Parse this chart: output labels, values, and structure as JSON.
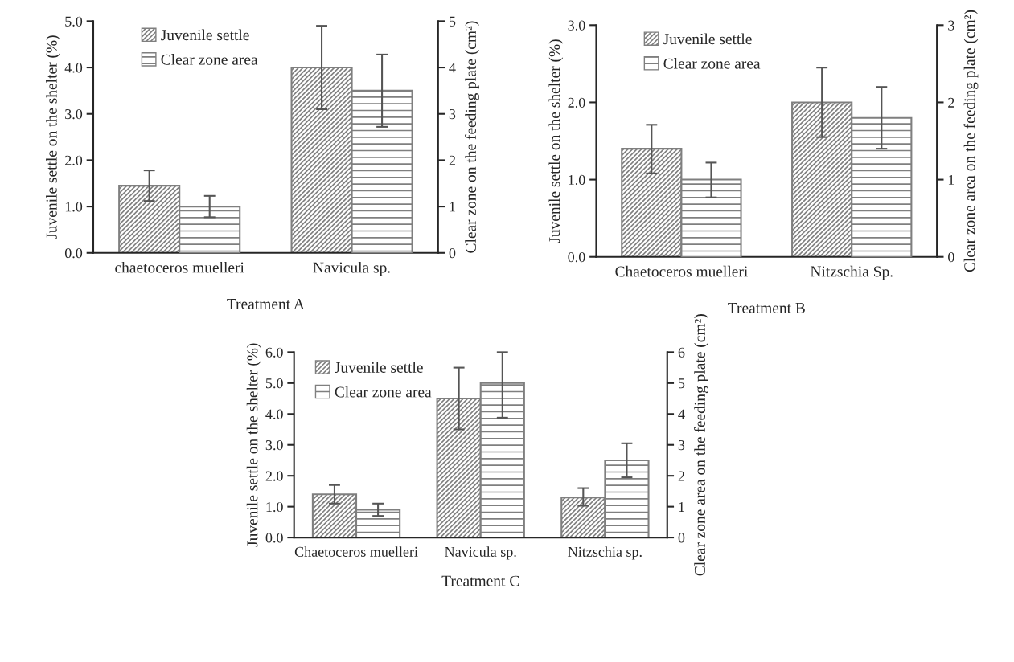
{
  "chart_data": [
    {
      "type": "bar",
      "xlabel": "Treatment A",
      "ylabel": "Juvenile settle on the shelter (%)",
      "y2label": "Clear zone on the feeding plate (cm²)",
      "categories": [
        "chaetoceros muelleri",
        "Navicula sp."
      ],
      "series": [
        {
          "name": "Juvenile settle",
          "color": "#7f7f7f",
          "values": [
            1.45,
            4.0
          ],
          "errors": [
            [
              1.12,
              1.78
            ],
            [
              3.1,
              4.9
            ]
          ]
        },
        {
          "name": "Clear zone area",
          "color": "#7f7f7f",
          "axis": "y2",
          "values": [
            1.0,
            3.5
          ],
          "errors": [
            [
              0.77,
              1.23
            ],
            [
              2.72,
              4.28
            ]
          ]
        }
      ],
      "ylim": [
        0,
        5
      ],
      "yticks": [
        {
          "value": 0,
          "label": "0.0"
        },
        {
          "value": 1,
          "label": "1.0"
        },
        {
          "value": 2,
          "label": "2.0"
        },
        {
          "value": 3,
          "label": "3.0"
        },
        {
          "value": 4,
          "label": "4.0"
        },
        {
          "value": 5,
          "label": "5.0"
        }
      ],
      "y2lim": [
        0,
        5
      ],
      "y2ticks": [
        0,
        1,
        2,
        3,
        4,
        5
      ],
      "legend": "top left",
      "grid": false
    },
    {
      "type": "bar",
      "xlabel": "Treatment B",
      "ylabel": "Juvenile settle on the shelter (%)",
      "y2label": "Clear zone area on the feeding plate (cm²)",
      "categories": [
        "Chaetoceros muelleri",
        "Nitzschia Sp."
      ],
      "series": [
        {
          "name": "Juvenile settle",
          "color": "#7f7f7f",
          "values": [
            1.4,
            2.0
          ],
          "errors": [
            [
              1.08,
              1.71
            ],
            [
              1.55,
              2.45
            ]
          ]
        },
        {
          "name": "Clear zone area",
          "color": "#7f7f7f",
          "axis": "y2",
          "values": [
            1.0,
            1.8
          ],
          "errors": [
            [
              0.77,
              1.22
            ],
            [
              1.4,
              2.2
            ]
          ]
        }
      ],
      "ylim": [
        0,
        3
      ],
      "yticks": [
        {
          "value": 0,
          "label": "0.0"
        },
        {
          "value": 1,
          "label": "1.0"
        },
        {
          "value": 2,
          "label": "2.0"
        },
        {
          "value": 3,
          "label": "3.0"
        }
      ],
      "y2lim": [
        0,
        3
      ],
      "y2ticks": [
        0,
        1,
        2,
        3
      ],
      "legend": "top left",
      "grid": false
    },
    {
      "type": "bar",
      "xlabel": "Treatment C",
      "ylabel": "Juvenile settle on the shelter (%)",
      "y2label": "Clear zone area on the feeding plate (cm²)",
      "categories": [
        "Chaetoceros muelleri",
        "Navicula sp.",
        "Nitzschia sp."
      ],
      "series": [
        {
          "name": "Juvenile settle",
          "color": "#7f7f7f",
          "values": [
            1.4,
            4.5,
            1.3
          ],
          "errors": [
            [
              1.1,
              1.7
            ],
            [
              3.5,
              5.5
            ],
            [
              1.03,
              1.6
            ]
          ]
        },
        {
          "name": "Clear zone area",
          "color": "#7f7f7f",
          "axis": "y2",
          "values": [
            0.9,
            5.0,
            2.5
          ],
          "errors": [
            [
              0.7,
              1.1
            ],
            [
              3.88,
              6.0
            ],
            [
              1.95,
              3.05
            ]
          ]
        }
      ],
      "ylim": [
        0,
        6
      ],
      "yticks": [
        {
          "value": 0,
          "label": "0.0"
        },
        {
          "value": 1,
          "label": "1.0"
        },
        {
          "value": 2,
          "label": "2.0"
        },
        {
          "value": 3,
          "label": "3.0"
        },
        {
          "value": 4,
          "label": "4.0"
        },
        {
          "value": 5,
          "label": "5.0"
        },
        {
          "value": 6,
          "label": "6.0"
        }
      ],
      "y2lim": [
        0,
        6
      ],
      "y2ticks": [
        0,
        1,
        2,
        3,
        4,
        5,
        6
      ],
      "legend": "top left",
      "grid": false
    }
  ]
}
